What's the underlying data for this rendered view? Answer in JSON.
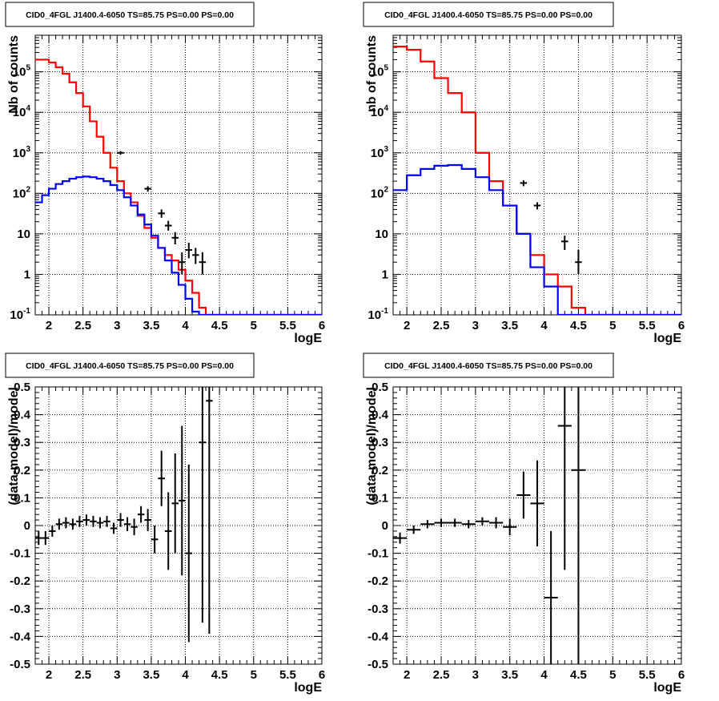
{
  "colors": {
    "data": "#000000",
    "total_model": "#ff0000",
    "source_model": "#0000ff",
    "grid": "#000000"
  },
  "chart_data": [
    {
      "type": "line",
      "title": "CID0_4FGL J1400.4-6050 TS=85.75 PS=0.00 PS=0.00",
      "xlabel": "logE",
      "ylabel": "Nb of counts",
      "xlim": [
        1.8,
        6.0
      ],
      "ylim": [
        0.1,
        800000
      ],
      "log_y": true,
      "grid": true,
      "x_ticks": [
        "2",
        "2.5",
        "3",
        "3.5",
        "4",
        "4.5",
        "5",
        "5.5",
        "6"
      ],
      "y_ticks": [
        "10^-1",
        "1",
        "10",
        "10^2",
        "10^3",
        "10^4",
        "10^5"
      ],
      "bin_edges": [
        1.8,
        1.9,
        2.0,
        2.1,
        2.2,
        2.3,
        2.4,
        2.5,
        2.6,
        2.7,
        2.8,
        2.9,
        3.0,
        3.1,
        3.2,
        3.3,
        3.4,
        3.5,
        3.6,
        3.7,
        3.8,
        3.9,
        4.0,
        4.1,
        4.2,
        4.3,
        4.4,
        4.5,
        4.6,
        4.7,
        4.8,
        4.9,
        5.0,
        5.1,
        5.2,
        5.3,
        5.4,
        5.5,
        5.6,
        5.7,
        5.8,
        5.9,
        6.0
      ],
      "series": [
        {
          "role": "total_model",
          "color": "#ff0000",
          "values": [
            200000,
            200000,
            170000,
            130000,
            90000,
            55000,
            30000,
            14000,
            6000,
            2500,
            1000,
            430,
            200,
            100,
            60,
            28,
            14,
            8,
            4.5,
            3.0,
            2.2,
            1.3,
            0.7,
            0.35,
            0.15,
            0.08,
            0.08,
            0.08,
            0.08,
            0.08,
            0.08,
            0.08,
            0.08,
            0.08,
            0.08,
            0.08,
            0.08,
            0.08,
            0.08,
            0.08,
            0.08,
            0.08
          ]
        },
        {
          "role": "source_model",
          "color": "#0000ff",
          "values": [
            60,
            90,
            130,
            170,
            200,
            230,
            250,
            260,
            250,
            230,
            200,
            160,
            120,
            80,
            50,
            30,
            17,
            9,
            4.5,
            2.2,
            1.1,
            0.55,
            0.25,
            0.12,
            0.08,
            0.08,
            0.08,
            0.08,
            0.08,
            0.08,
            0.08,
            0.08,
            0.08,
            0.08,
            0.08,
            0.08,
            0.08,
            0.08,
            0.08,
            0.08,
            0.08,
            0.08
          ]
        }
      ],
      "points": [
        {
          "x": 3.05,
          "y": 1000,
          "ylo": 900,
          "yhi": 1100
        },
        {
          "x": 3.45,
          "y": 130,
          "ylo": 110,
          "yhi": 150
        },
        {
          "x": 3.65,
          "y": 32,
          "ylo": 25,
          "yhi": 40
        },
        {
          "x": 3.75,
          "y": 16,
          "ylo": 12,
          "yhi": 21
        },
        {
          "x": 3.85,
          "y": 8,
          "ylo": 5.5,
          "yhi": 11
        },
        {
          "x": 3.95,
          "y": 2.0,
          "ylo": 1.0,
          "yhi": 3.5
        },
        {
          "x": 4.05,
          "y": 4.0,
          "ylo": 2.5,
          "yhi": 6.0
        },
        {
          "x": 4.15,
          "y": 3.0,
          "ylo": 1.8,
          "yhi": 4.5
        },
        {
          "x": 4.25,
          "y": 2.0,
          "ylo": 1.0,
          "yhi": 3.5
        }
      ]
    },
    {
      "type": "line",
      "title": "CID0_4FGL J1400.4-6050 TS=85.75 PS=0.00 PS=0.00",
      "xlabel": "logE",
      "ylabel": "nb of counts",
      "xlim": [
        1.8,
        6.0
      ],
      "ylim": [
        0.1,
        800000
      ],
      "log_y": true,
      "grid": true,
      "x_ticks": [
        "2",
        "2.5",
        "3",
        "3.5",
        "4",
        "4.5",
        "5",
        "5.5",
        "6"
      ],
      "y_ticks": [
        "10^-1",
        "1",
        "10",
        "10^2",
        "10^3",
        "10^4",
        "10^5"
      ],
      "bin_edges": [
        1.8,
        2.0,
        2.2,
        2.4,
        2.6,
        2.8,
        3.0,
        3.2,
        3.4,
        3.6,
        3.8,
        4.0,
        4.2,
        4.4,
        4.6,
        4.8,
        5.0,
        5.2,
        5.4,
        5.6,
        5.8,
        6.0
      ],
      "series": [
        {
          "role": "total_model",
          "color": "#ff0000",
          "values": [
            420000,
            350000,
            180000,
            70000,
            30000,
            10000,
            1000,
            200,
            50,
            10,
            3,
            1,
            0.5,
            0.15,
            0.1,
            0.1,
            0.1,
            0.1,
            0.1,
            0.1,
            0.1
          ]
        },
        {
          "role": "source_model",
          "color": "#0000ff",
          "values": [
            120,
            280,
            400,
            480,
            500,
            400,
            250,
            120,
            50,
            10,
            1.5,
            0.5,
            0.1,
            0.1,
            0.1,
            0.1,
            0.1,
            0.1,
            0.1,
            0.1,
            0.1
          ]
        }
      ],
      "points": [
        {
          "x": 3.7,
          "y": 180,
          "ylo": 150,
          "yhi": 210
        },
        {
          "x": 3.9,
          "y": 50,
          "ylo": 40,
          "yhi": 60
        },
        {
          "x": 4.3,
          "y": 6.5,
          "ylo": 4.0,
          "yhi": 9.0
        },
        {
          "x": 4.5,
          "y": 2.0,
          "ylo": 1.0,
          "yhi": 4.0
        }
      ]
    },
    {
      "type": "scatter",
      "title": "CID0_4FGL J1400.4-6050 TS=85.75 PS=0.00 PS=0.00",
      "xlabel": "logE",
      "ylabel": "(data-model)/model",
      "xlim": [
        1.8,
        6.0
      ],
      "ylim": [
        -0.5,
        0.5
      ],
      "grid": true,
      "x_ticks": [
        "2",
        "2.5",
        "3",
        "3.5",
        "4",
        "4.5",
        "5",
        "5.5",
        "6"
      ],
      "y_ticks": [
        "-0.5",
        "-0.4",
        "-0.3",
        "-0.2",
        "-0.1",
        "0",
        "0.1",
        "0.2",
        "0.3",
        "0.4",
        "0.5"
      ],
      "xerr": 0.05,
      "points": [
        {
          "x": 1.85,
          "y": -0.045,
          "err": 0.025
        },
        {
          "x": 1.95,
          "y": -0.045,
          "err": 0.025
        },
        {
          "x": 2.05,
          "y": -0.02,
          "err": 0.02
        },
        {
          "x": 2.15,
          "y": 0.005,
          "err": 0.02
        },
        {
          "x": 2.25,
          "y": 0.01,
          "err": 0.02
        },
        {
          "x": 2.35,
          "y": 0.005,
          "err": 0.02
        },
        {
          "x": 2.45,
          "y": 0.015,
          "err": 0.02
        },
        {
          "x": 2.55,
          "y": 0.02,
          "err": 0.02
        },
        {
          "x": 2.65,
          "y": 0.015,
          "err": 0.02
        },
        {
          "x": 2.75,
          "y": 0.01,
          "err": 0.02
        },
        {
          "x": 2.85,
          "y": 0.015,
          "err": 0.02
        },
        {
          "x": 2.95,
          "y": -0.01,
          "err": 0.02
        },
        {
          "x": 3.05,
          "y": 0.02,
          "err": 0.025
        },
        {
          "x": 3.15,
          "y": 0.005,
          "err": 0.025
        },
        {
          "x": 3.25,
          "y": -0.005,
          "err": 0.03
        },
        {
          "x": 3.35,
          "y": 0.04,
          "err": 0.03
        },
        {
          "x": 3.45,
          "y": 0.02,
          "err": 0.04
        },
        {
          "x": 3.55,
          "y": -0.05,
          "err": 0.05
        },
        {
          "x": 3.65,
          "y": 0.17,
          "err": 0.1
        },
        {
          "x": 3.75,
          "y": -0.02,
          "err": 0.14
        },
        {
          "x": 3.85,
          "y": 0.08,
          "err": 0.18
        },
        {
          "x": 3.95,
          "y": 0.09,
          "err": 0.27
        },
        {
          "x": 4.05,
          "y": -0.1,
          "err": 0.32
        },
        {
          "x": 4.25,
          "y": 0.3,
          "err": 0.65
        },
        {
          "x": 4.35,
          "y": 0.45,
          "err": 0.84
        }
      ]
    },
    {
      "type": "scatter",
      "title": "CID0_4FGL J1400.4-6050 TS=85.75 PS=0.00 PS=0.00",
      "xlabel": "logE",
      "ylabel": "(data-model)/model",
      "xlim": [
        1.8,
        6.0
      ],
      "ylim": [
        -0.5,
        0.5
      ],
      "grid": true,
      "x_ticks": [
        "2",
        "2.5",
        "3",
        "3.5",
        "4",
        "4.5",
        "5",
        "5.5",
        "6"
      ],
      "y_ticks": [
        "-0.5",
        "-0.4",
        "-0.3",
        "-0.2",
        "-0.1",
        "0",
        "0.1",
        "0.2",
        "0.3",
        "0.4",
        "0.5"
      ],
      "xerr": 0.1,
      "points": [
        {
          "x": 1.9,
          "y": -0.045,
          "err": 0.02
        },
        {
          "x": 2.1,
          "y": -0.015,
          "err": 0.015
        },
        {
          "x": 2.3,
          "y": 0.005,
          "err": 0.015
        },
        {
          "x": 2.5,
          "y": 0.01,
          "err": 0.015
        },
        {
          "x": 2.7,
          "y": 0.01,
          "err": 0.015
        },
        {
          "x": 2.9,
          "y": 0.005,
          "err": 0.015
        },
        {
          "x": 3.1,
          "y": 0.015,
          "err": 0.015
        },
        {
          "x": 3.3,
          "y": 0.01,
          "err": 0.02
        },
        {
          "x": 3.5,
          "y": -0.005,
          "err": 0.03
        },
        {
          "x": 3.7,
          "y": 0.11,
          "err": 0.085
        },
        {
          "x": 3.9,
          "y": 0.08,
          "err": 0.155
        },
        {
          "x": 4.1,
          "y": -0.26,
          "err": 0.24
        },
        {
          "x": 4.3,
          "y": 0.36,
          "err": 0.52
        },
        {
          "x": 4.5,
          "y": 0.2,
          "err": 0.8
        }
      ]
    }
  ]
}
